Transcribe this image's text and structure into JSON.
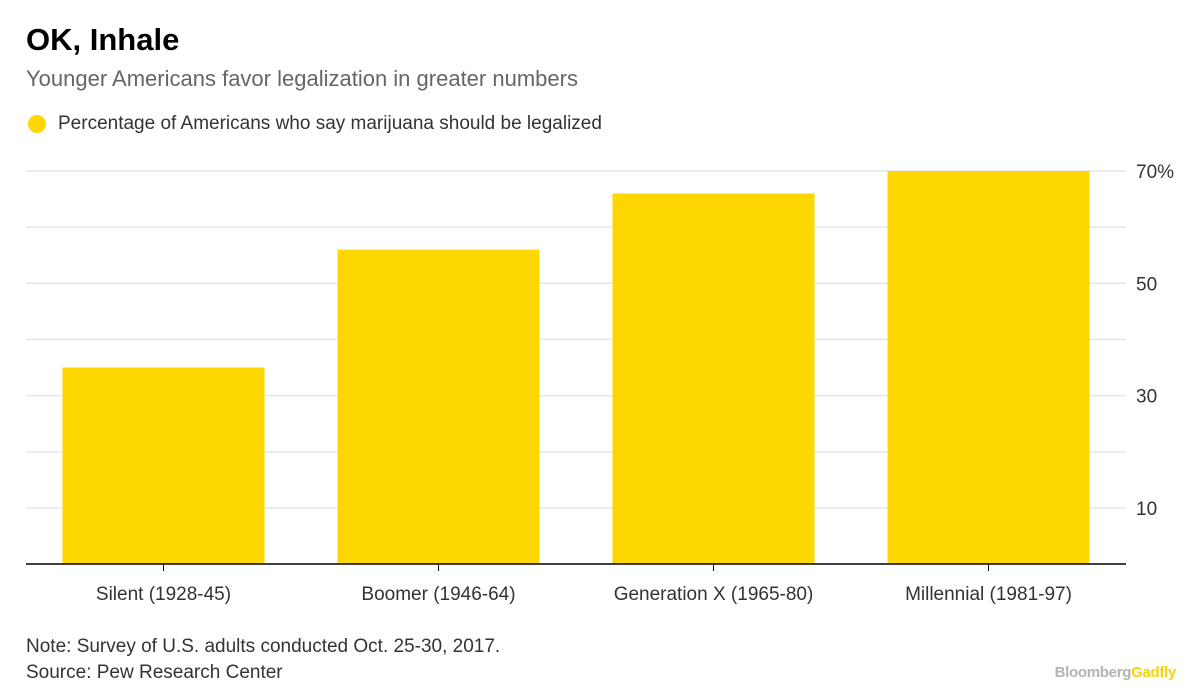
{
  "title": "OK, Inhale",
  "subtitle": "Younger Americans favor legalization in greater numbers",
  "legend": {
    "label": "Percentage of Americans who say marijuana should be legalized"
  },
  "note": "Note: Survey of U.S. adults conducted Oct. 25-30, 2017.",
  "source": "Source: Pew Research Center",
  "brand": {
    "main": "Bloomberg",
    "accent": "Gadfly"
  },
  "colors": {
    "bar": "#FFD700",
    "grid": "#e6e6e6",
    "axis": "#000000",
    "tick_label": "#333333",
    "brand_accent": "#f5d400"
  },
  "chart_data": {
    "type": "bar",
    "categories": [
      "Silent (1928-45)",
      "Boomer (1946-64)",
      "Generation X (1965-80)",
      "Millennial (1981-97)"
    ],
    "series": [
      {
        "name": "Percentage of Americans who say marijuana should be legalized",
        "values": [
          35,
          56,
          66,
          70
        ]
      }
    ],
    "ylim": [
      0,
      70
    ],
    "y_gridlines": [
      10,
      20,
      30,
      40,
      50,
      60,
      70
    ],
    "y_tick_labels": [
      {
        "value": 10,
        "label": "10"
      },
      {
        "value": 30,
        "label": "30"
      },
      {
        "value": 50,
        "label": "50"
      },
      {
        "value": 70,
        "label": "70%"
      }
    ],
    "y_axis_side": "right",
    "grid": true,
    "legend_position": "top-left"
  }
}
